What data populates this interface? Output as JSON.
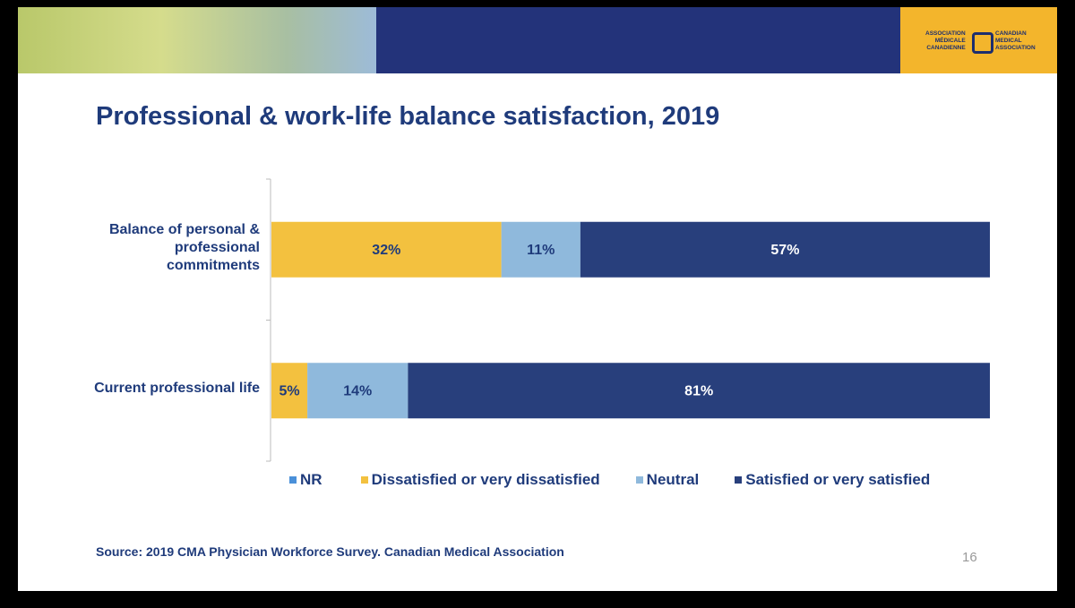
{
  "header": {
    "logo_fr": [
      "ASSOCIATION",
      "MÉDICALE",
      "CANADIENNE"
    ],
    "logo_en": [
      "CANADIAN",
      "MEDICAL",
      "ASSOCIATION"
    ]
  },
  "chart_data": {
    "type": "stacked-bar-horizontal",
    "title": "Professional & work-life balance satisfaction, 2019",
    "categories": [
      "Balance of personal & professional commitments",
      "Current professional life"
    ],
    "series": [
      {
        "name": "NR",
        "color": "#4a90d9",
        "values": [
          0,
          0
        ],
        "value_labels": [
          null,
          null
        ]
      },
      {
        "name": "Dissatisfied or very dissatisfied",
        "color": "#f3c13f",
        "values": [
          32,
          5
        ],
        "value_labels": [
          "32%",
          "5%"
        ]
      },
      {
        "name": "Neutral",
        "color": "#8fb9dc",
        "values": [
          11,
          14
        ],
        "value_labels": [
          "11%",
          "14%"
        ]
      },
      {
        "name": "Satisfied or very satisfied",
        "color": "#283f7c",
        "values": [
          57,
          81
        ],
        "value_labels": [
          "57%",
          "81%"
        ]
      }
    ],
    "xlim": [
      0,
      100
    ]
  },
  "footer": {
    "source": "Source: 2019 CMA Physician Workforce Survey. Canadian Medical Association",
    "page_number": "16"
  }
}
